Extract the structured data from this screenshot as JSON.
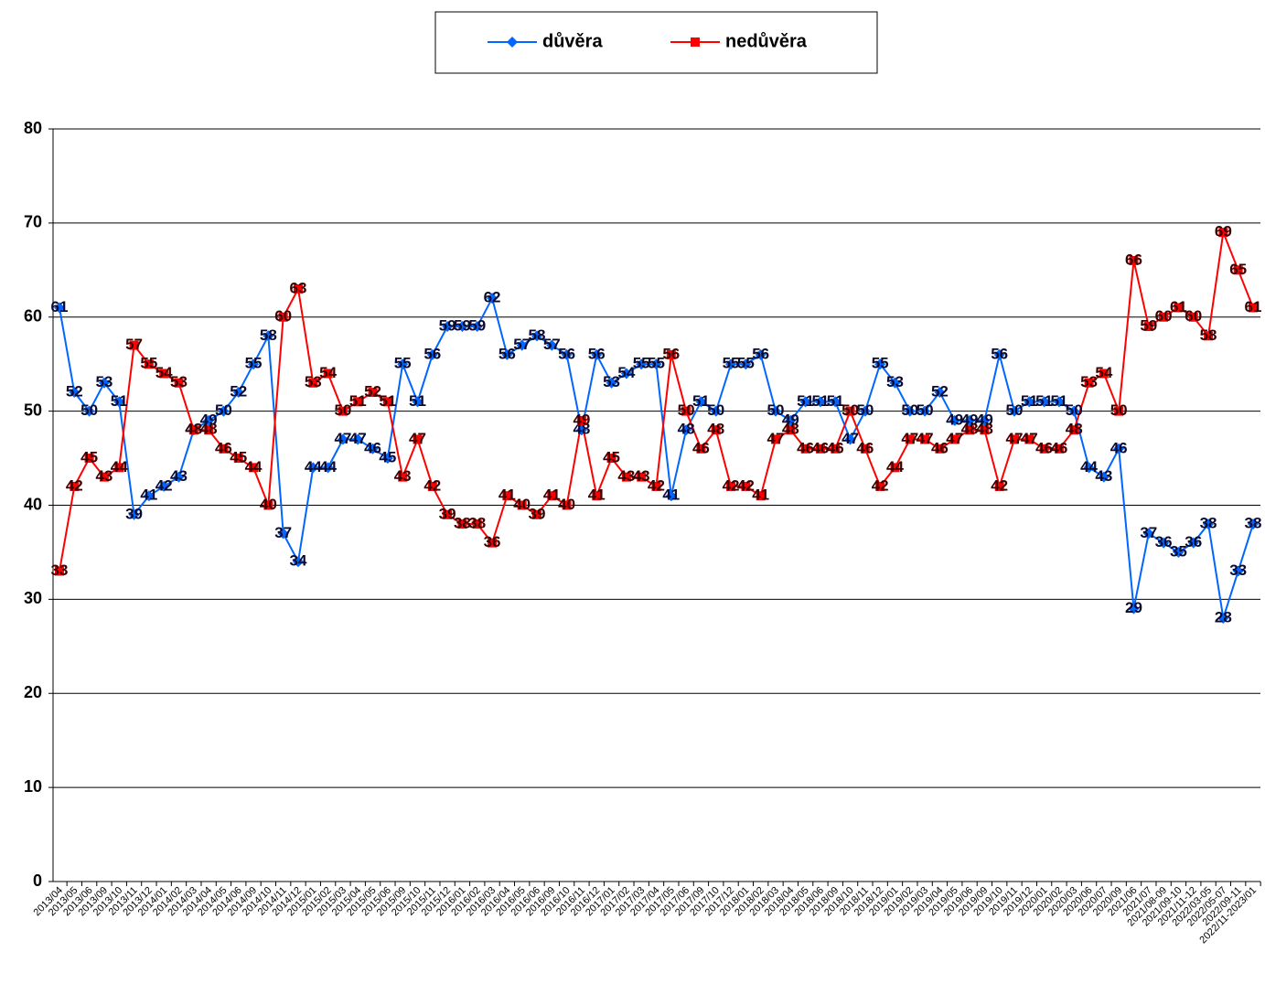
{
  "chart_data": {
    "type": "line",
    "categories": [
      "2013/04",
      "2013/05",
      "2013/06",
      "2013/09",
      "2013/10",
      "2013/11",
      "2013/12",
      "2014/01",
      "2014/02",
      "2014/03",
      "2014/04",
      "2014/05",
      "2014/06",
      "2014/09",
      "2014/10",
      "2014/11",
      "2014/12",
      "2015/01",
      "2015/02",
      "2015/03",
      "2015/04",
      "2015/05",
      "2015/06",
      "2015/09",
      "2015/10",
      "2015/11",
      "2015/12",
      "2016/01",
      "2016/02",
      "2016/03",
      "2016/04",
      "2016/05",
      "2016/06",
      "2016/09",
      "2016/10",
      "2016/11",
      "2016/12",
      "2017/01",
      "2017/02",
      "2017/03",
      "2017/04",
      "2017/05",
      "2017/06",
      "2017/09",
      "2017/10",
      "2017/12",
      "2018/01",
      "2018/02",
      "2018/03",
      "2018/04",
      "2018/05",
      "2018/06",
      "2018/09",
      "2018/10",
      "2018/11",
      "2018/12",
      "2019/01",
      "2019/02",
      "2019/03",
      "2019/04",
      "2019/05",
      "2019/06",
      "2019/09",
      "2019/10",
      "2019/11",
      "2019/12",
      "2020/01",
      "2020/02",
      "2020/03",
      "2020/06",
      "2020/07",
      "2020/09",
      "2021/06",
      "2021/07",
      "2021/08-09",
      "2021/09-10",
      "2021/11-12",
      "2022/03-05",
      "2022/05-07",
      "2022/09-11",
      "2022/11-2023/01"
    ],
    "series": [
      {
        "name": "důvěra",
        "color": "#0066ff",
        "marker": "diamond",
        "values": [
          61,
          52,
          50,
          53,
          51,
          39,
          41,
          42,
          43,
          48,
          49,
          50,
          52,
          55,
          58,
          37,
          34,
          44,
          44,
          47,
          47,
          46,
          45,
          55,
          51,
          56,
          59,
          59,
          59,
          62,
          56,
          57,
          58,
          57,
          56,
          48,
          56,
          53,
          54,
          55,
          55,
          41,
          48,
          51,
          50,
          55,
          55,
          56,
          50,
          49,
          51,
          51,
          51,
          47,
          50,
          55,
          53,
          50,
          50,
          52,
          49,
          49,
          49,
          56,
          50,
          51,
          51,
          51,
          50,
          44,
          43,
          46,
          29,
          37,
          36,
          35,
          36,
          38,
          28,
          33,
          38
        ]
      },
      {
        "name": "nedůvěra",
        "color": "#ff0000",
        "marker": "square",
        "values": [
          33,
          42,
          45,
          43,
          44,
          57,
          55,
          54,
          53,
          48,
          48,
          46,
          45,
          44,
          40,
          60,
          63,
          53,
          54,
          50,
          51,
          52,
          51,
          43,
          47,
          42,
          39,
          38,
          38,
          36,
          41,
          40,
          39,
          41,
          40,
          49,
          41,
          45,
          43,
          43,
          42,
          56,
          50,
          46,
          48,
          42,
          42,
          41,
          47,
          48,
          46,
          46,
          46,
          50,
          46,
          42,
          44,
          47,
          47,
          46,
          47,
          48,
          48,
          42,
          47,
          47,
          46,
          46,
          48,
          53,
          54,
          50,
          66,
          59,
          60,
          61,
          60,
          58,
          69,
          65,
          61
        ]
      }
    ],
    "ylim": [
      0,
      80
    ],
    "yticks": [
      0,
      10,
      20,
      30,
      40,
      50,
      60,
      70,
      80
    ],
    "grid": true,
    "legend": "top"
  }
}
